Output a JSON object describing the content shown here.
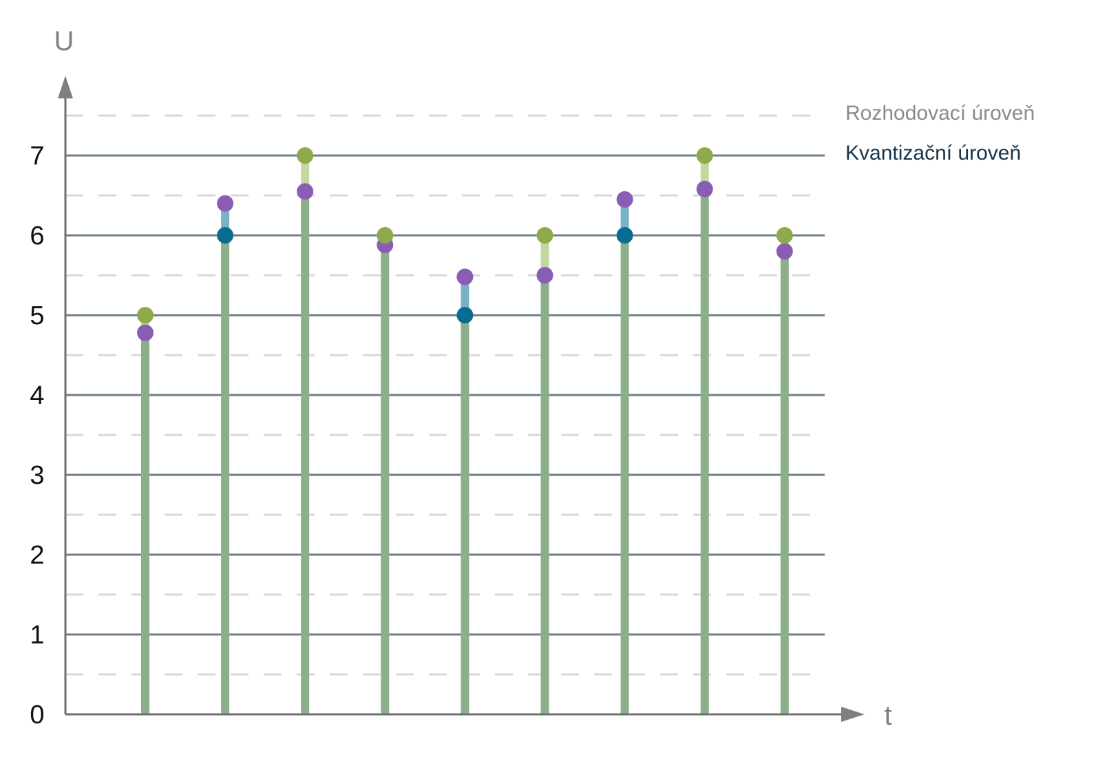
{
  "chart_data": {
    "type": "stem",
    "x_axis_label": "t",
    "y_axis_label": "U",
    "y_ticks": [
      "0",
      "1",
      "2",
      "3",
      "4",
      "5",
      "6",
      "7"
    ],
    "ylim": [
      0,
      7.5
    ],
    "decision_levels": [
      0.5,
      1.5,
      2.5,
      3.5,
      4.5,
      5.5,
      6.5,
      7.5
    ],
    "quantization_levels": [
      1,
      2,
      3,
      4,
      5,
      6,
      7
    ],
    "legend": {
      "decision": "Rozhodovací úroveň",
      "quantization": "Kvantizační úroveň"
    },
    "samples": [
      {
        "index": 1,
        "value": 4.78,
        "quantized": 5
      },
      {
        "index": 2,
        "value": 6.4,
        "quantized": 6
      },
      {
        "index": 3,
        "value": 6.55,
        "quantized": 7
      },
      {
        "index": 4,
        "value": 5.88,
        "quantized": 6
      },
      {
        "index": 5,
        "value": 5.48,
        "quantized": 5
      },
      {
        "index": 6,
        "value": 5.5,
        "quantized": 6
      },
      {
        "index": 7,
        "value": 6.45,
        "quantized": 6
      },
      {
        "index": 8,
        "value": 6.58,
        "quantized": 7
      },
      {
        "index": 9,
        "value": 5.8,
        "quantized": 6
      }
    ],
    "colors": {
      "stem": "#8aaf8a",
      "sample_point": "#8a5cb4",
      "quantized_up_point": "#8faa4a",
      "quantized_up_link": "#c4d7a0",
      "quantized_down_point": "#0a6c92",
      "quantized_down_link": "#7ab0c8",
      "quant_line": "#6e7f8a",
      "decision_line": "#d8d8d8",
      "axis": "#6f6f6f"
    }
  }
}
